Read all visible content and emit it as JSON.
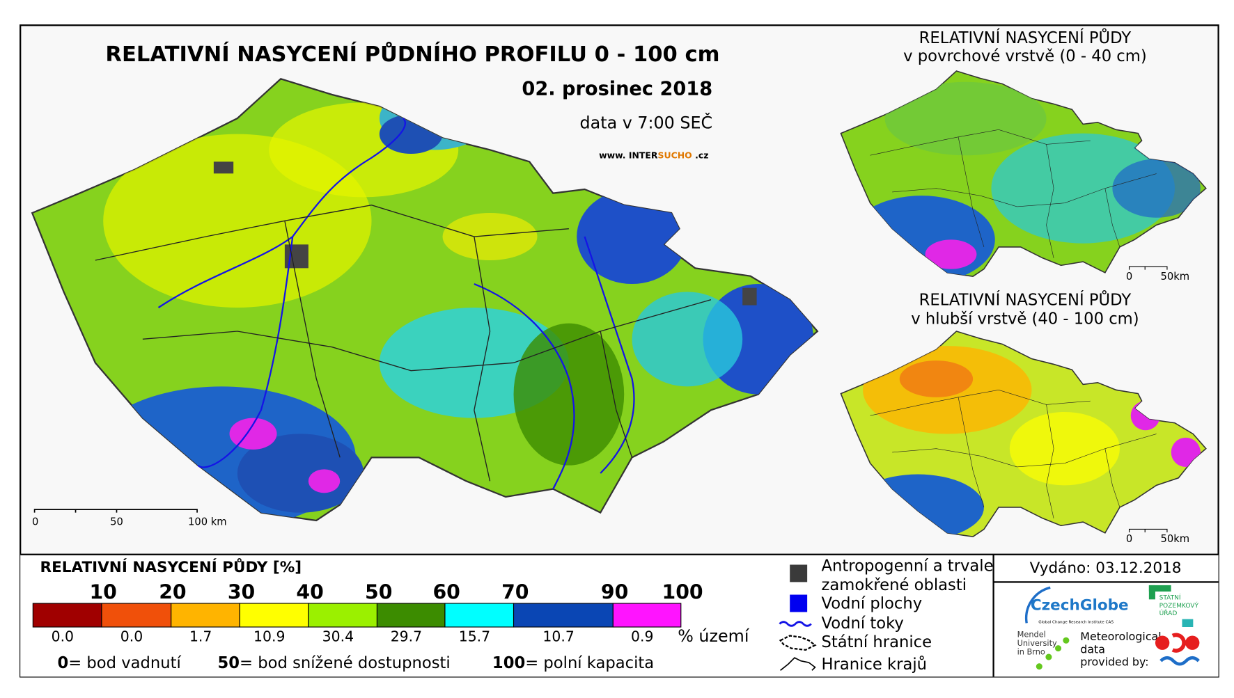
{
  "header": {
    "title": "RELATIVNÍ NASYCENÍ PŮDNÍHO PROFILU 0 - 100 cm",
    "date": "02. prosinec 2018",
    "time": "data v 7:00 SEČ",
    "website": {
      "prefix": "www. INTER",
      "highlight": "SUCHO",
      "suffix": " .cz"
    }
  },
  "main_map": {
    "scale_labels": [
      "0",
      "50",
      "100 km"
    ]
  },
  "insets": [
    {
      "title": "RELATIVNÍ NASYCENÍ PŮDY",
      "subtitle": "v povrchové vrstvě (0 - 40 cm)",
      "scale_labels": [
        "0",
        "50km"
      ]
    },
    {
      "title": "RELATIVNÍ NASYCENÍ PŮDY",
      "subtitle": "v hlubší vrstvě (40 - 100 cm)",
      "scale_labels": [
        "0",
        "50km"
      ]
    }
  ],
  "legend": {
    "title": "RELATIVNÍ NASYCENÍ PŮDY [%]",
    "boundaries": [
      "10",
      "20",
      "30",
      "40",
      "50",
      "60",
      "70",
      "90",
      "100"
    ],
    "classes": [
      {
        "color": "#a00000",
        "share": "0.0"
      },
      {
        "color": "#f0500a",
        "share": "0.0"
      },
      {
        "color": "#ffb400",
        "share": "1.7"
      },
      {
        "color": "#ffff00",
        "share": "10.9"
      },
      {
        "color": "#9bf000",
        "share": "30.4"
      },
      {
        "color": "#3c8c00",
        "share": "29.7"
      },
      {
        "color": "#00ffff",
        "share": "15.7"
      },
      {
        "color": "#0a46b4",
        "share": "10.7"
      },
      {
        "color": "#ff14ff",
        "share": "0.9"
      }
    ],
    "unit": "% území",
    "notes": [
      {
        "value": "0",
        "text": "= bod vadnutí"
      },
      {
        "value": "50",
        "text": "= bod snížené dostupnosti"
      },
      {
        "value": "100",
        "text": "= polní kapacita"
      }
    ]
  },
  "features": [
    {
      "label": "Antropogenní a trvale zamokřené oblasti"
    },
    {
      "label": "Vodní plochy"
    },
    {
      "label": "Vodní toky"
    },
    {
      "label": "Státní hranice"
    },
    {
      "label": "Hranice krajů"
    }
  ],
  "issued": "Vydáno: 03.12.2018",
  "logos": {
    "czechglobe": "CzechGlobe",
    "czechglobe_sub": "Global Change Research Institute CAS",
    "spu": [
      "STÁTNÍ",
      "POZEMKOVÝ",
      "ÚŘAD"
    ],
    "mendel": [
      "Mendel",
      "University",
      "in Brno"
    ],
    "meteo": [
      "Meteorological",
      "data",
      "provided by:"
    ]
  }
}
